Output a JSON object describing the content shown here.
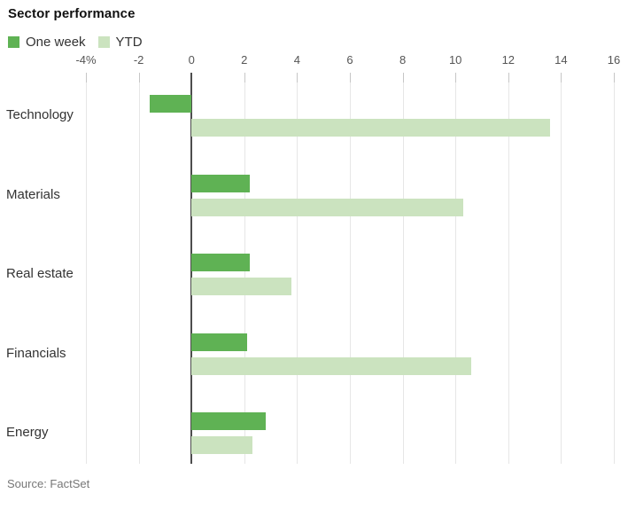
{
  "source": "Source: FactSet",
  "colors": {
    "one_week": "#5fb254",
    "ytd": "#cbe3bf",
    "grid": "#e6e6e6",
    "tick": "#c6c6c6",
    "zero_line": "#4d4d4d",
    "axis_text": "#555555",
    "category_text": "#333333"
  },
  "chart_data": {
    "type": "bar",
    "orientation": "horizontal",
    "title": "Sector performance",
    "categories": [
      "Technology",
      "Materials",
      "Real estate",
      "Financials",
      "Energy"
    ],
    "series": [
      {
        "name": "One week",
        "color": "#5fb254",
        "values": [
          -1.6,
          2.2,
          2.2,
          2.1,
          2.8
        ]
      },
      {
        "name": "YTD",
        "color": "#cbe3bf",
        "values": [
          13.6,
          10.3,
          3.8,
          10.6,
          2.3
        ]
      }
    ],
    "x_axis": {
      "min": -4,
      "max": 16,
      "tick_step": 2,
      "unit": "%",
      "tick_values": [
        -4,
        -2,
        0,
        2,
        4,
        6,
        8,
        10,
        12,
        14,
        16
      ],
      "tick_labels": [
        "-4%",
        "-2",
        "0",
        "2",
        "4",
        "6",
        "8",
        "10",
        "12",
        "14",
        "16"
      ]
    },
    "grid": true,
    "legend_position": "top-left"
  }
}
